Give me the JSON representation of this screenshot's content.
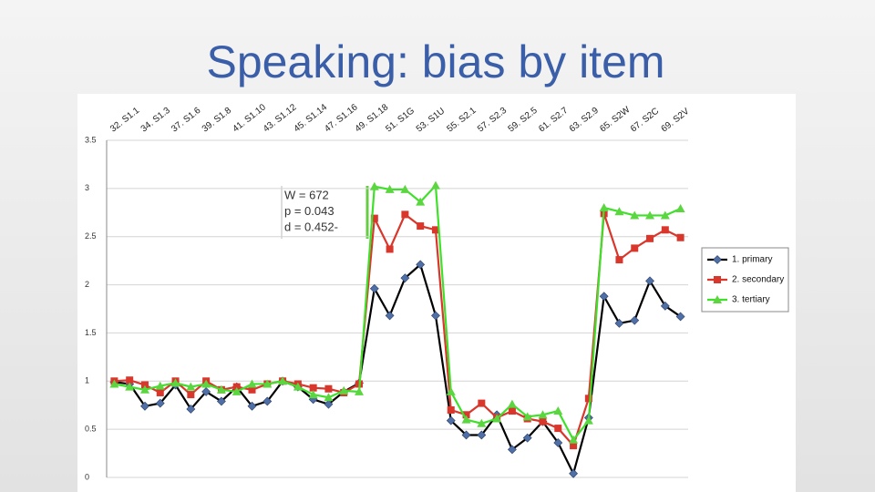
{
  "chart_data": {
    "type": "line",
    "title": "Speaking: bias by item",
    "categories": [
      "32. S1.1",
      null,
      "34. S1.3",
      null,
      "37. S1.6",
      null,
      "39. S1.8",
      null,
      "41. S1.10",
      null,
      "43. S1.12",
      null,
      "45. S1.14",
      null,
      "47. S1.16",
      null,
      "49. S1.18",
      null,
      "51. S1G",
      null,
      "53. S1U",
      null,
      "55. S2.1",
      null,
      "57. S2.3",
      null,
      "59. S2.5",
      null,
      "61. S2.7",
      null,
      "63. S2.9",
      null,
      "65. S2W",
      null,
      "67. S2C",
      null,
      "69. S2V",
      null
    ],
    "series": [
      {
        "name": "1. primary",
        "color": "#4f6fa6",
        "line_color": "#000000",
        "marker": "diamond",
        "values": [
          0.99,
          0.97,
          0.74,
          0.77,
          0.96,
          0.71,
          0.89,
          0.79,
          0.94,
          0.74,
          0.79,
          1.0,
          0.94,
          0.81,
          0.76,
          0.89,
          0.98,
          1.96,
          1.68,
          2.07,
          2.21,
          1.68,
          0.59,
          0.44,
          0.44,
          0.65,
          0.29,
          0.41,
          0.58,
          0.36,
          0.04,
          0.62,
          1.88,
          1.6,
          1.63,
          2.04,
          1.78,
          1.67
        ]
      },
      {
        "name": "2. secondary",
        "color": "#d9362c",
        "line_color": "#d9362c",
        "marker": "square",
        "values": [
          1.0,
          1.01,
          0.96,
          0.88,
          1.0,
          0.86,
          1.0,
          0.91,
          0.94,
          0.91,
          0.97,
          1.0,
          0.97,
          0.93,
          0.92,
          0.88,
          0.97,
          2.69,
          2.37,
          2.73,
          2.61,
          2.57,
          0.7,
          0.65,
          0.77,
          0.62,
          0.69,
          0.61,
          0.58,
          0.51,
          0.33,
          0.82,
          2.74,
          2.26,
          2.38,
          2.48,
          2.57,
          2.49
        ]
      },
      {
        "name": "3. tertiary",
        "color": "#5cd640",
        "line_color": "#3ee02a",
        "marker": "triangle",
        "values": [
          0.97,
          0.94,
          0.91,
          0.95,
          0.98,
          0.94,
          0.97,
          0.91,
          0.89,
          0.97,
          0.97,
          1.0,
          0.94,
          0.86,
          0.83,
          0.9,
          0.89,
          3.02,
          2.99,
          2.99,
          2.86,
          3.03,
          0.89,
          0.6,
          0.56,
          0.61,
          0.76,
          0.63,
          0.65,
          0.69,
          0.39,
          0.59,
          2.8,
          2.76,
          2.72,
          2.72,
          2.72,
          2.79
        ]
      }
    ],
    "annotations": [
      "W = 672",
      "p = 0.043",
      "d = 0.452-"
    ],
    "ylim": [
      0,
      3.5
    ],
    "yticks": [
      0,
      0.5,
      1,
      1.5,
      2,
      2.5,
      3,
      3.5
    ],
    "grid": true,
    "legend": "right"
  }
}
